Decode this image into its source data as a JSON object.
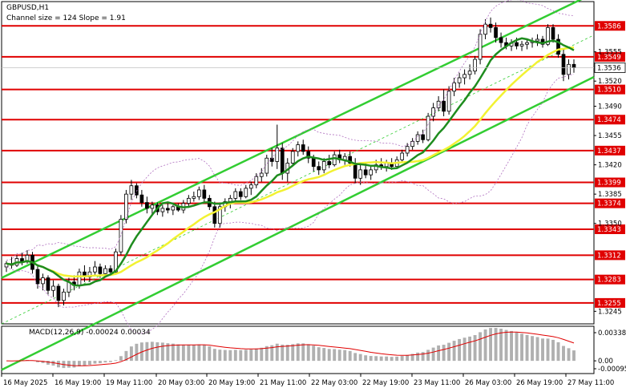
{
  "chart_data": {
    "type": "candlestick",
    "symbol_title": "GBPUSD,H1",
    "channel_info": "Channel size = 124  Slope = 1.91",
    "y_ticks": [
      "1.3586",
      "1.3555",
      "1.3549",
      "1.3536",
      "1.3520",
      "1.3510",
      "1.3490",
      "1.3474",
      "1.3455",
      "1.3437",
      "1.3420",
      "1.3399",
      "1.3385",
      "1.3374",
      "1.3350",
      "1.3343",
      "1.3312",
      "1.3283",
      "1.3255",
      "1.3245"
    ],
    "ylim": [
      1.323,
      1.3615
    ],
    "levels": [
      {
        "label": "1.3586",
        "value": 1.3586,
        "boxed": true
      },
      {
        "label": "1.3549",
        "value": 1.3549,
        "boxed": true
      },
      {
        "label": "1.3510",
        "value": 1.351,
        "boxed": true
      },
      {
        "label": "1.3474",
        "value": 1.3474,
        "boxed": true
      },
      {
        "label": "1.3437",
        "value": 1.3437,
        "boxed": true
      },
      {
        "label": "1.3399",
        "value": 1.3399,
        "boxed": true
      },
      {
        "label": "1.3374",
        "value": 1.3374,
        "boxed": true
      },
      {
        "label": "1.3343",
        "value": 1.3343,
        "boxed": true
      },
      {
        "label": "1.3312",
        "value": 1.3312,
        "boxed": true
      },
      {
        "label": "1.3283",
        "value": 1.3283,
        "boxed": true
      },
      {
        "label": "1.3255",
        "value": 1.3255,
        "boxed": true
      }
    ],
    "plain_ticks": [
      {
        "label": "1.3555",
        "value": 1.3555
      },
      {
        "label": "1.3520",
        "value": 1.352
      },
      {
        "label": "1.3490",
        "value": 1.349
      },
      {
        "label": "1.3455",
        "value": 1.3455
      },
      {
        "label": "1.3420",
        "value": 1.342
      },
      {
        "label": "1.3385",
        "value": 1.3385
      },
      {
        "label": "1.3350",
        "value": 1.335
      },
      {
        "label": "1.3245",
        "value": 1.3245
      }
    ],
    "current_price": {
      "label": "1.3536",
      "value": 1.3536
    },
    "x_labels": [
      "16 May 2025",
      "16 May 19:00",
      "19 May 11:00",
      "20 May 03:00",
      "20 May 19:00",
      "21 May 11:00",
      "22 May 03:00",
      "22 May 19:00",
      "23 May 11:00",
      "26 May 03:00",
      "26 May 19:00",
      "27 May 11:00"
    ],
    "candles": [
      [
        1.3298,
        1.3305,
        1.3292,
        1.3302
      ],
      [
        1.3302,
        1.331,
        1.3296,
        1.33
      ],
      [
        1.33,
        1.3312,
        1.3298,
        1.3308
      ],
      [
        1.3308,
        1.3315,
        1.33,
        1.3304
      ],
      [
        1.3304,
        1.3318,
        1.3302,
        1.3312
      ],
      [
        1.3312,
        1.3316,
        1.329,
        1.3295
      ],
      [
        1.3295,
        1.33,
        1.3272,
        1.3278
      ],
      [
        1.3278,
        1.329,
        1.327,
        1.3285
      ],
      [
        1.3285,
        1.3288,
        1.3265,
        1.327
      ],
      [
        1.327,
        1.3282,
        1.3262,
        1.3275
      ],
      [
        1.3275,
        1.3278,
        1.325,
        1.3258
      ],
      [
        1.3258,
        1.3272,
        1.3252,
        1.3268
      ],
      [
        1.3268,
        1.3285,
        1.3262,
        1.328
      ],
      [
        1.328,
        1.3288,
        1.327,
        1.3276
      ],
      [
        1.3276,
        1.3296,
        1.3272,
        1.3292
      ],
      [
        1.3292,
        1.33,
        1.328,
        1.3286
      ],
      [
        1.3286,
        1.3298,
        1.328,
        1.3292
      ],
      [
        1.3292,
        1.3305,
        1.3288,
        1.3298
      ],
      [
        1.3298,
        1.3302,
        1.3285,
        1.329
      ],
      [
        1.329,
        1.33,
        1.3286,
        1.3296
      ],
      [
        1.3296,
        1.33,
        1.3288,
        1.3292
      ],
      [
        1.3292,
        1.332,
        1.329,
        1.3316
      ],
      [
        1.3316,
        1.336,
        1.3312,
        1.3355
      ],
      [
        1.3355,
        1.339,
        1.335,
        1.3385
      ],
      [
        1.3385,
        1.3402,
        1.3378,
        1.3395
      ],
      [
        1.3395,
        1.3398,
        1.338,
        1.3384
      ],
      [
        1.3384,
        1.339,
        1.337,
        1.3375
      ],
      [
        1.3375,
        1.3382,
        1.3362,
        1.3368
      ],
      [
        1.3368,
        1.3376,
        1.336,
        1.3372
      ],
      [
        1.3372,
        1.3375,
        1.336,
        1.3364
      ],
      [
        1.3364,
        1.3372,
        1.3358,
        1.3368
      ],
      [
        1.3368,
        1.3374,
        1.3362,
        1.3366
      ],
      [
        1.3366,
        1.3372,
        1.336,
        1.337
      ],
      [
        1.337,
        1.3374,
        1.3364,
        1.3366
      ],
      [
        1.3366,
        1.3378,
        1.3362,
        1.3374
      ],
      [
        1.3374,
        1.3384,
        1.337,
        1.338
      ],
      [
        1.338,
        1.3388,
        1.3376,
        1.3382
      ],
      [
        1.3382,
        1.3394,
        1.3378,
        1.339
      ],
      [
        1.339,
        1.3396,
        1.3376,
        1.338
      ],
      [
        1.338,
        1.3384,
        1.3366,
        1.337
      ],
      [
        1.337,
        1.3376,
        1.3345,
        1.335
      ],
      [
        1.335,
        1.3375,
        1.3345,
        1.337
      ],
      [
        1.337,
        1.338,
        1.3364,
        1.3376
      ],
      [
        1.3376,
        1.3384,
        1.3368,
        1.338
      ],
      [
        1.338,
        1.3392,
        1.3376,
        1.3388
      ],
      [
        1.3388,
        1.3392,
        1.3378,
        1.3382
      ],
      [
        1.3382,
        1.3396,
        1.338,
        1.3392
      ],
      [
        1.3392,
        1.34,
        1.3384,
        1.3396
      ],
      [
        1.3396,
        1.341,
        1.3392,
        1.3406
      ],
      [
        1.3406,
        1.3416,
        1.34,
        1.341
      ],
      [
        1.341,
        1.3432,
        1.3406,
        1.3428
      ],
      [
        1.3428,
        1.344,
        1.3418,
        1.3424
      ],
      [
        1.3424,
        1.3468,
        1.3415,
        1.344
      ],
      [
        1.344,
        1.3446,
        1.3402,
        1.341
      ],
      [
        1.341,
        1.3428,
        1.34,
        1.3422
      ],
      [
        1.3422,
        1.344,
        1.3418,
        1.3436
      ],
      [
        1.3436,
        1.3448,
        1.343,
        1.3444
      ],
      [
        1.3444,
        1.345,
        1.3432,
        1.3436
      ],
      [
        1.3436,
        1.3442,
        1.3422,
        1.3428
      ],
      [
        1.3428,
        1.3432,
        1.3412,
        1.3418
      ],
      [
        1.3418,
        1.3424,
        1.3408,
        1.3414
      ],
      [
        1.3414,
        1.3428,
        1.341,
        1.3424
      ],
      [
        1.3424,
        1.3432,
        1.3416,
        1.342
      ],
      [
        1.342,
        1.3436,
        1.3418,
        1.3432
      ],
      [
        1.3432,
        1.3438,
        1.3422,
        1.3426
      ],
      [
        1.3426,
        1.3434,
        1.342,
        1.343
      ],
      [
        1.343,
        1.3436,
        1.3418,
        1.3422
      ],
      [
        1.3422,
        1.3428,
        1.3398,
        1.3404
      ],
      [
        1.3404,
        1.342,
        1.3396,
        1.3414
      ],
      [
        1.3414,
        1.3422,
        1.3404,
        1.3408
      ],
      [
        1.3408,
        1.3418,
        1.3402,
        1.3414
      ],
      [
        1.3414,
        1.3426,
        1.341,
        1.342
      ],
      [
        1.342,
        1.3428,
        1.3414,
        1.3418
      ],
      [
        1.3418,
        1.3426,
        1.3412,
        1.3422
      ],
      [
        1.3422,
        1.3428,
        1.3414,
        1.3418
      ],
      [
        1.3418,
        1.343,
        1.3416,
        1.3426
      ],
      [
        1.3426,
        1.3438,
        1.3422,
        1.3434
      ],
      [
        1.3434,
        1.3446,
        1.343,
        1.3442
      ],
      [
        1.3442,
        1.3452,
        1.3438,
        1.3448
      ],
      [
        1.3448,
        1.346,
        1.3444,
        1.3456
      ],
      [
        1.3456,
        1.3462,
        1.3446,
        1.345
      ],
      [
        1.345,
        1.3482,
        1.3448,
        1.3478
      ],
      [
        1.3478,
        1.3494,
        1.3472,
        1.3488
      ],
      [
        1.3488,
        1.3502,
        1.3484,
        1.3496
      ],
      [
        1.3496,
        1.351,
        1.3478,
        1.3484
      ],
      [
        1.3484,
        1.3514,
        1.348,
        1.3508
      ],
      [
        1.3508,
        1.3524,
        1.3502,
        1.3518
      ],
      [
        1.3518,
        1.353,
        1.3512,
        1.3524
      ],
      [
        1.3524,
        1.3534,
        1.3516,
        1.3528
      ],
      [
        1.3528,
        1.354,
        1.3522,
        1.3532
      ],
      [
        1.3532,
        1.355,
        1.3528,
        1.3546
      ],
      [
        1.3546,
        1.3582,
        1.354,
        1.3576
      ],
      [
        1.3576,
        1.3594,
        1.357,
        1.3588
      ],
      [
        1.3588,
        1.3596,
        1.3578,
        1.3584
      ],
      [
        1.3584,
        1.359,
        1.3566,
        1.3572
      ],
      [
        1.3572,
        1.3578,
        1.356,
        1.3566
      ],
      [
        1.3566,
        1.3572,
        1.3558,
        1.3562
      ],
      [
        1.3562,
        1.357,
        1.3556,
        1.3566
      ],
      [
        1.3566,
        1.3572,
        1.3558,
        1.3562
      ],
      [
        1.3562,
        1.3568,
        1.3556,
        1.3564
      ],
      [
        1.3564,
        1.357,
        1.3558,
        1.3566
      ],
      [
        1.3566,
        1.3572,
        1.356,
        1.3568
      ],
      [
        1.3568,
        1.3576,
        1.3562,
        1.357
      ],
      [
        1.357,
        1.3574,
        1.356,
        1.3564
      ],
      [
        1.3564,
        1.3588,
        1.3562,
        1.3584
      ],
      [
        1.3584,
        1.3588,
        1.3566,
        1.357
      ],
      [
        1.357,
        1.3576,
        1.3548,
        1.3552
      ],
      [
        1.3552,
        1.3558,
        1.352,
        1.3528
      ],
      [
        1.3528,
        1.3546,
        1.3522,
        1.354
      ],
      [
        1.354,
        1.3546,
        1.353,
        1.3536
      ]
    ],
    "ma_fast": {
      "color": "#1e8c1e"
    },
    "ma_slow": {
      "color": "#f2f232"
    },
    "macd": {
      "label": "MACD(12,26,9) -0.00024 0.00034",
      "y_ticks": [
        "0.00338",
        "0.00",
        "-0.00095"
      ]
    }
  }
}
